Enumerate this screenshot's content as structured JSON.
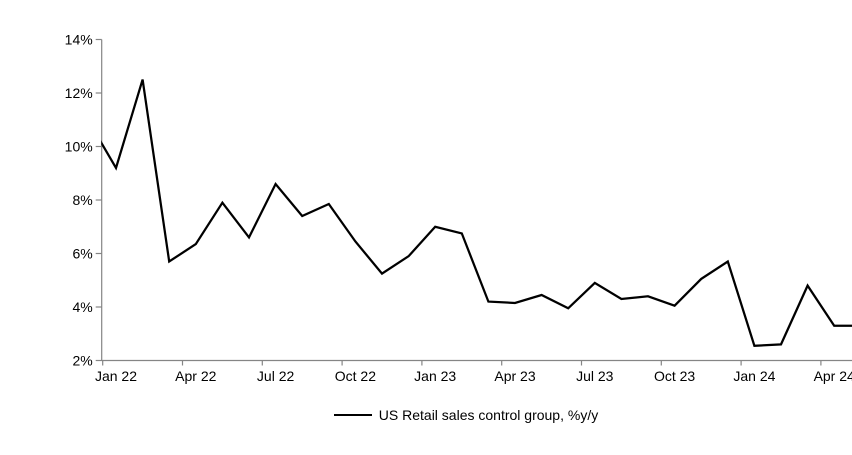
{
  "chart_data": {
    "type": "line",
    "title": "",
    "legend": "US Retail sales control group, %y/y",
    "legend_position": "bottom-center",
    "grid": false,
    "background_color": "#ffffff",
    "series_color": "#000000",
    "axis_color": "#858585",
    "ylim": [
      2,
      14
    ],
    "y_tick_values": [
      2,
      4,
      6,
      8,
      10,
      12,
      14
    ],
    "y_tick_labels": [
      "2%",
      "4%",
      "6%",
      "8%",
      "10%",
      "12%",
      "14%"
    ],
    "x_tick_labels": [
      "Jan 22",
      "Apr 22",
      "Jul 22",
      "Oct 22",
      "Jan 23",
      "Apr 23",
      "Jul 23",
      "Oct 23",
      "Jan 24",
      "Apr 24"
    ],
    "x": [
      "Dec 21",
      "Jan 22",
      "Feb 22",
      "Mar 22",
      "Apr 22",
      "May 22",
      "Jun 22",
      "Jul 22",
      "Aug 22",
      "Sep 22",
      "Oct 22",
      "Nov 22",
      "Dec 22",
      "Jan 23",
      "Feb 23",
      "Mar 23",
      "Apr 23",
      "May 23",
      "Jun 23",
      "Jul 23",
      "Aug 23",
      "Sep 23",
      "Oct 23",
      "Nov 23",
      "Dec 23",
      "Jan 24",
      "Feb 24",
      "Mar 24",
      "Apr 24",
      "May 24"
    ],
    "values": [
      10.9,
      9.2,
      12.5,
      5.7,
      6.35,
      7.9,
      6.6,
      8.6,
      7.4,
      7.85,
      6.45,
      5.25,
      5.9,
      7.0,
      6.75,
      4.2,
      4.15,
      4.45,
      3.95,
      4.9,
      4.3,
      4.4,
      4.05,
      5.05,
      5.7,
      2.55,
      2.6,
      4.8,
      3.3,
      3.3
    ],
    "first_point_clipped_by_axis": true,
    "unit": "%"
  }
}
